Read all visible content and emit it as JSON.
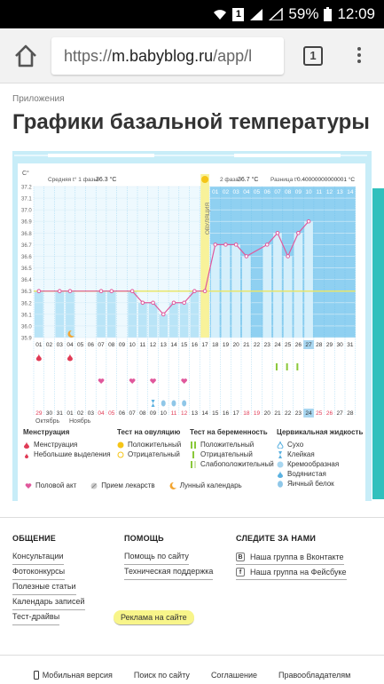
{
  "status_bar": {
    "battery": "59%",
    "time": "12:09",
    "sim": "1"
  },
  "browser": {
    "url_prefix": "https://",
    "url_host": "m.babyblog.ru",
    "url_path": "/app/l",
    "tab_count": "1"
  },
  "page": {
    "breadcrumb": "Приложения",
    "title": "Графики базальной температуры"
  },
  "chart": {
    "unit": "C°",
    "phase1_label": "Средняя t° 1 фазы",
    "phase1_value": "36.3 °C",
    "phase2_label": "2 фаза",
    "phase2_value": "36.7 °C",
    "diff_label": "Разница t°",
    "diff_value": "0.40000000000001 °C",
    "ovulation_label": "ОВУЛЯЦИЯ",
    "month1": "Октябрь",
    "month2": "Ноябрь",
    "colors": {
      "bar": "#b9e4f7",
      "bar_high": "#8fd0f1",
      "line": "#e0589c",
      "ovulation": "#f8f29a",
      "avg": "#e9e66a",
      "grid": "#5bb8e8"
    }
  },
  "chart_data": {
    "type": "line",
    "ylabel": "C°",
    "ylim": [
      35.9,
      37.2
    ],
    "yticks": [
      "37.2",
      "37.1",
      "37.0",
      "36.9",
      "36.8",
      "36.7",
      "36.6",
      "36.5",
      "36.4",
      "36.3",
      "36.2",
      "36.1",
      "36.0",
      "35.9"
    ],
    "cycle_days": [
      "01",
      "02",
      "03",
      "04",
      "05",
      "06",
      "07",
      "08",
      "09",
      "10",
      "11",
      "12",
      "13",
      "14",
      "15",
      "16",
      "17",
      "18",
      "19",
      "20",
      "21",
      "22",
      "23",
      "24",
      "25",
      "26",
      "27",
      "28",
      "29",
      "30",
      "31"
    ],
    "phase2_days": [
      "01",
      "02",
      "03",
      "04",
      "05",
      "06",
      "07",
      "08",
      "09",
      "10",
      "11",
      "12",
      "13",
      "14"
    ],
    "dates": [
      "29",
      "30",
      "31",
      "01",
      "02",
      "03",
      "04",
      "05",
      "06",
      "07",
      "08",
      "09",
      "10",
      "11",
      "12",
      "13",
      "14",
      "15",
      "16",
      "17",
      "18",
      "19",
      "20",
      "21",
      "22",
      "23",
      "24",
      "25",
      "26",
      "27",
      "28"
    ],
    "series": [
      {
        "values": [
          36.3,
          null,
          36.3,
          36.3,
          null,
          null,
          36.3,
          36.3,
          null,
          36.3,
          36.2,
          36.2,
          36.1,
          36.2,
          36.2,
          36.3,
          36.3,
          36.7,
          36.7,
          36.7,
          36.6,
          null,
          36.7,
          36.8,
          36.6,
          36.8,
          36.9,
          null,
          null,
          null,
          null
        ]
      }
    ],
    "average_line": 36.3
  },
  "legend": {
    "menstruation": {
      "title": "Менструация",
      "items": [
        "Менструация",
        "Небольшие выделения"
      ]
    },
    "ovulation_test": {
      "title": "Тест на овуляцию",
      "items": [
        "Положительный",
        "Отрицательный"
      ]
    },
    "pregnancy_test": {
      "title": "Тест на беременность",
      "items": [
        "Положительный",
        "Отрицательный",
        "Слабоположительный"
      ]
    },
    "cervical": {
      "title": "Цервикальная жидкость",
      "items": [
        "Сухо",
        "Клейкая",
        "Кремообразная",
        "Водянистая",
        "Яичный белок"
      ]
    },
    "bottom": [
      "Половой акт",
      "Прием лекарств",
      "Лунный календарь"
    ]
  },
  "footer": {
    "col1": {
      "title": "ОБЩЕНИЕ",
      "links": [
        "Консультации",
        "Фотоконкурсы",
        "Полезные статьи",
        "Календарь записей",
        "Тест-драйвы"
      ]
    },
    "col2": {
      "title": "ПОМОЩЬ",
      "links": [
        "Помощь по сайту",
        "Техническая поддержка",
        "Реклама на сайте"
      ]
    },
    "col3": {
      "title": "СЛЕДИТЕ ЗА НАМИ",
      "links": [
        "Наша группа в Вконтакте",
        "Наша группа на Фейсбуке"
      ]
    },
    "bottom": [
      "Мобильная версия",
      "Поиск по сайту",
      "Соглашение",
      "Правообладателям"
    ]
  }
}
